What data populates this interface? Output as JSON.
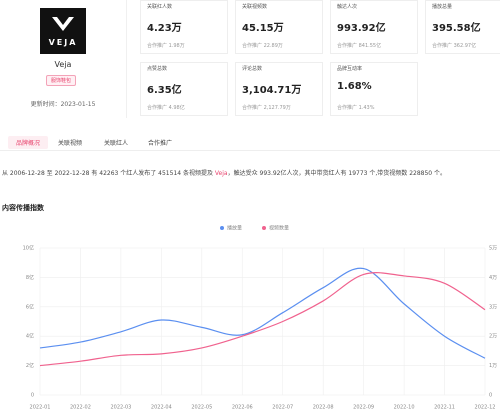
{
  "brand": {
    "logo_text": "VEJA",
    "name": "Veja",
    "tag": "服饰鞋包",
    "updated": "更新时间：2023-01-15"
  },
  "stats": [
    {
      "label": "关联红人数",
      "value": "4.23万",
      "sub": "合作推广 1.98万"
    },
    {
      "label": "关联视频数",
      "value": "45.15万",
      "sub": "合作推广 22.89万"
    },
    {
      "label": "触达人次",
      "value": "993.92亿",
      "sub": "合作推广 841.55亿"
    },
    {
      "label": "播放总量",
      "value": "395.58亿",
      "sub": "合作推广 362.97亿"
    },
    {
      "label": "点赞总数",
      "value": "6.35亿",
      "sub": "合作推广 4.98亿"
    },
    {
      "label": "评论总数",
      "value": "3,104.71万",
      "sub": "合作推广 2,127.79万"
    },
    {
      "label": "品牌互动率",
      "value": "1.68%",
      "sub": "合作推广 1.43%"
    }
  ],
  "tabs": [
    "品牌概况",
    "关联视频",
    "关联红人",
    "合作推广"
  ],
  "summary": {
    "before": "从 2006-12-28 至 2022-12-28 有 42263 个红人发布了 451514 条视频提及 ",
    "highlight": "Veja",
    "after": "，触达受众 993.92亿人次，其中带货红人有 19773 个,带货视频数 228850 个。"
  },
  "chart_data": {
    "type": "line",
    "title": "内容传播指数",
    "categories": [
      "2022-01",
      "2022-02",
      "2022-03",
      "2022-04",
      "2022-05",
      "2022-06",
      "2022-07",
      "2022-08",
      "2022-09",
      "2022-10",
      "2022-11",
      "2022-12"
    ],
    "series": [
      {
        "name": "播放量",
        "color": "#5b8ff0",
        "values": [
          3.2,
          3.6,
          4.3,
          5.1,
          4.6,
          4.1,
          5.6,
          7.3,
          8.6,
          6.2,
          4.0,
          2.5
        ]
      },
      {
        "name": "视频数量",
        "color": "#f0628e",
        "axis": "y2",
        "values": [
          1.0,
          1.15,
          1.35,
          1.4,
          1.6,
          2.0,
          2.5,
          3.2,
          4.1,
          4.05,
          3.8,
          2.9
        ]
      }
    ],
    "ylim": [
      0,
      10
    ],
    "yticks": [
      0,
      {
        "value": 2,
        "label": "2亿"
      },
      {
        "value": 4,
        "label": "4亿"
      },
      {
        "value": 6,
        "label": "6亿"
      },
      {
        "value": 8,
        "label": "8亿"
      },
      {
        "value": 10,
        "label": "10亿"
      }
    ],
    "y2lim": [
      0,
      5
    ],
    "y2ticks": [
      0,
      {
        "value": 1,
        "label": "1万"
      },
      {
        "value": 2,
        "label": "2万"
      },
      {
        "value": 3,
        "label": "3万"
      },
      {
        "value": 4,
        "label": "4万"
      },
      {
        "value": 5,
        "label": "5万"
      }
    ],
    "grid": true,
    "legend": "top"
  }
}
